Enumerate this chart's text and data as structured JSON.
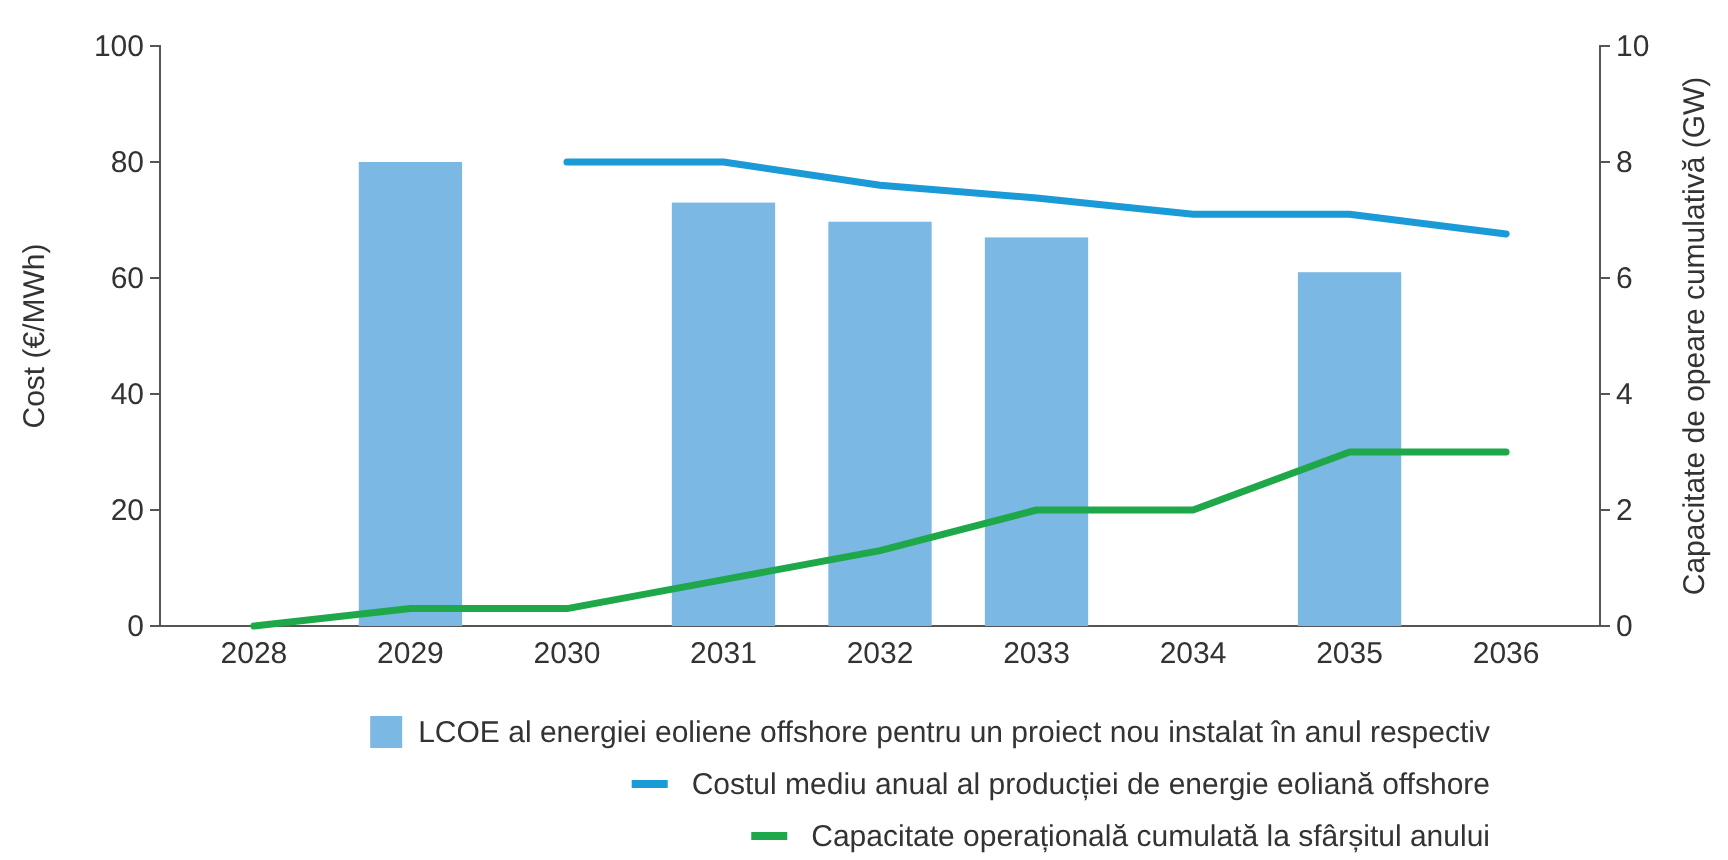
{
  "chart_data": {
    "type": "bar",
    "categories": [
      "2028",
      "2029",
      "2030",
      "2031",
      "2032",
      "2033",
      "2034",
      "2035",
      "2036"
    ],
    "ylabel": "Cost (€/MWh)",
    "y2label": "Capacitate de opeare cumulativă (GW)",
    "ylim": [
      0,
      100
    ],
    "yticks": [
      0,
      20,
      40,
      60,
      80,
      100
    ],
    "y2lim": [
      0,
      10
    ],
    "y2ticks": [
      0,
      2,
      4,
      6,
      8,
      10
    ],
    "grid": false,
    "legend": "bottom",
    "series": [
      {
        "name": "LCOE al energiei eoliene offshore pentru un proiect nou instalat în anul respectiv",
        "color": "#7cb8e4",
        "values": [
          null,
          80,
          null,
          73,
          69.7,
          67,
          null,
          61,
          null
        ]
      },
      {
        "name": "Costul mediu anual al producției de energie eoliană offshore",
        "type": "line",
        "color": "#1a9ad6",
        "values": [
          null,
          null,
          80,
          80,
          76,
          73.8,
          71,
          71,
          67.6
        ]
      },
      {
        "name": "Capacitate operațională cumulată la sfârșitul anului",
        "type": "line",
        "axis": "y2",
        "color": "#1fa84a",
        "values": [
          0,
          0.3,
          0.3,
          0.8,
          1.3,
          2,
          2,
          3,
          3
        ]
      }
    ]
  }
}
